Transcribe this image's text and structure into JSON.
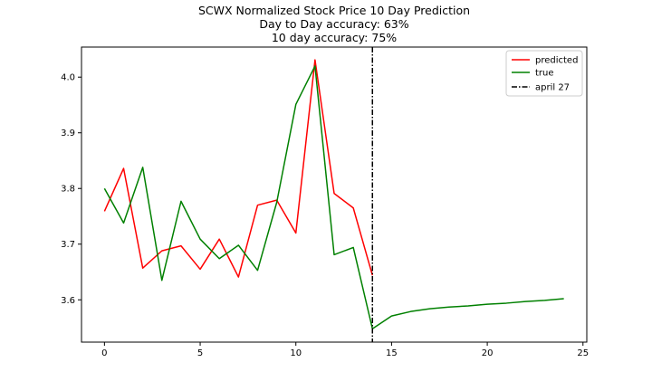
{
  "chart_data": {
    "type": "line",
    "title": [
      "SCWX Normalized Stock Price 10 Day Prediction",
      "Day to Day accuracy: 63%",
      "10 day accuracy: 75%"
    ],
    "xlabel": "",
    "ylabel": "",
    "xlim": [
      -1.2,
      25.2
    ],
    "ylim": [
      3.524,
      4.054
    ],
    "x_ticks": [
      0,
      5,
      10,
      15,
      20,
      25
    ],
    "y_ticks": [
      3.6,
      3.7,
      3.8,
      3.9,
      4.0
    ],
    "x_tick_labels": [
      "0",
      "5",
      "10",
      "15",
      "20",
      "25"
    ],
    "y_tick_labels": [
      "3.6",
      "3.7",
      "3.8",
      "3.9",
      "4.0"
    ],
    "grid": false,
    "legend_position": "top-right",
    "series": [
      {
        "name": "predicted",
        "color": "#ff0000",
        "x": [
          0,
          1,
          2,
          3,
          4,
          5,
          6,
          7,
          8,
          9,
          10,
          11,
          12,
          13,
          14
        ],
        "y": [
          3.759,
          3.836,
          3.657,
          3.688,
          3.697,
          3.655,
          3.709,
          3.641,
          3.77,
          3.779,
          3.72,
          4.031,
          3.791,
          3.765,
          3.644
        ]
      },
      {
        "name": "true",
        "color": "#008000",
        "x": [
          0,
          1,
          2,
          3,
          4,
          5,
          6,
          7,
          8,
          9,
          10,
          11,
          12,
          13,
          14,
          15,
          16,
          17,
          18,
          19,
          20,
          21,
          22,
          23,
          24
        ],
        "y": [
          3.8,
          3.738,
          3.838,
          3.635,
          3.777,
          3.709,
          3.674,
          3.698,
          3.653,
          3.775,
          3.951,
          4.02,
          3.681,
          3.694,
          3.548,
          3.571,
          3.579,
          3.584,
          3.587,
          3.589,
          3.592,
          3.594,
          3.597,
          3.599,
          3.602
        ]
      }
    ],
    "reference_lines": [
      {
        "name": "april 27",
        "orientation": "vertical",
        "x": 14,
        "color": "#000000",
        "style": "dash-dot"
      }
    ]
  }
}
